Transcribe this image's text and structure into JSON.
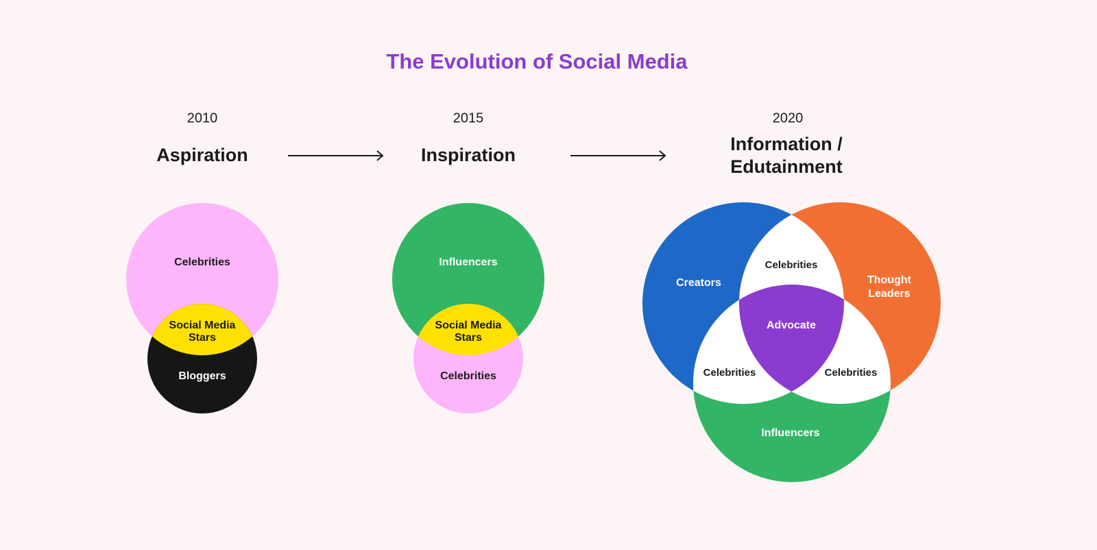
{
  "title": "The Evolution of Social Media",
  "stages": [
    {
      "year": "2010",
      "heading": [
        "Aspiration"
      ],
      "labels": {
        "top": "Celebrities",
        "overlap": [
          "Social Media",
          "Stars"
        ],
        "bottom": "Bloggers"
      }
    },
    {
      "year": "2015",
      "heading": [
        "Inspiration"
      ],
      "labels": {
        "top": "Influencers",
        "overlap": [
          "Social Media",
          "Stars"
        ],
        "bottom": "Celebrities"
      }
    },
    {
      "year": "2020",
      "heading": [
        "Information /",
        "Edutainment"
      ],
      "labels": {
        "left": "Creators",
        "right": [
          "Thought",
          "Leaders"
        ],
        "bottom": "Influencers",
        "overlap_top": "Celebrities",
        "overlap_left": "Celebrities",
        "overlap_right": "Celebrities",
        "center": "Advocate"
      }
    }
  ]
}
